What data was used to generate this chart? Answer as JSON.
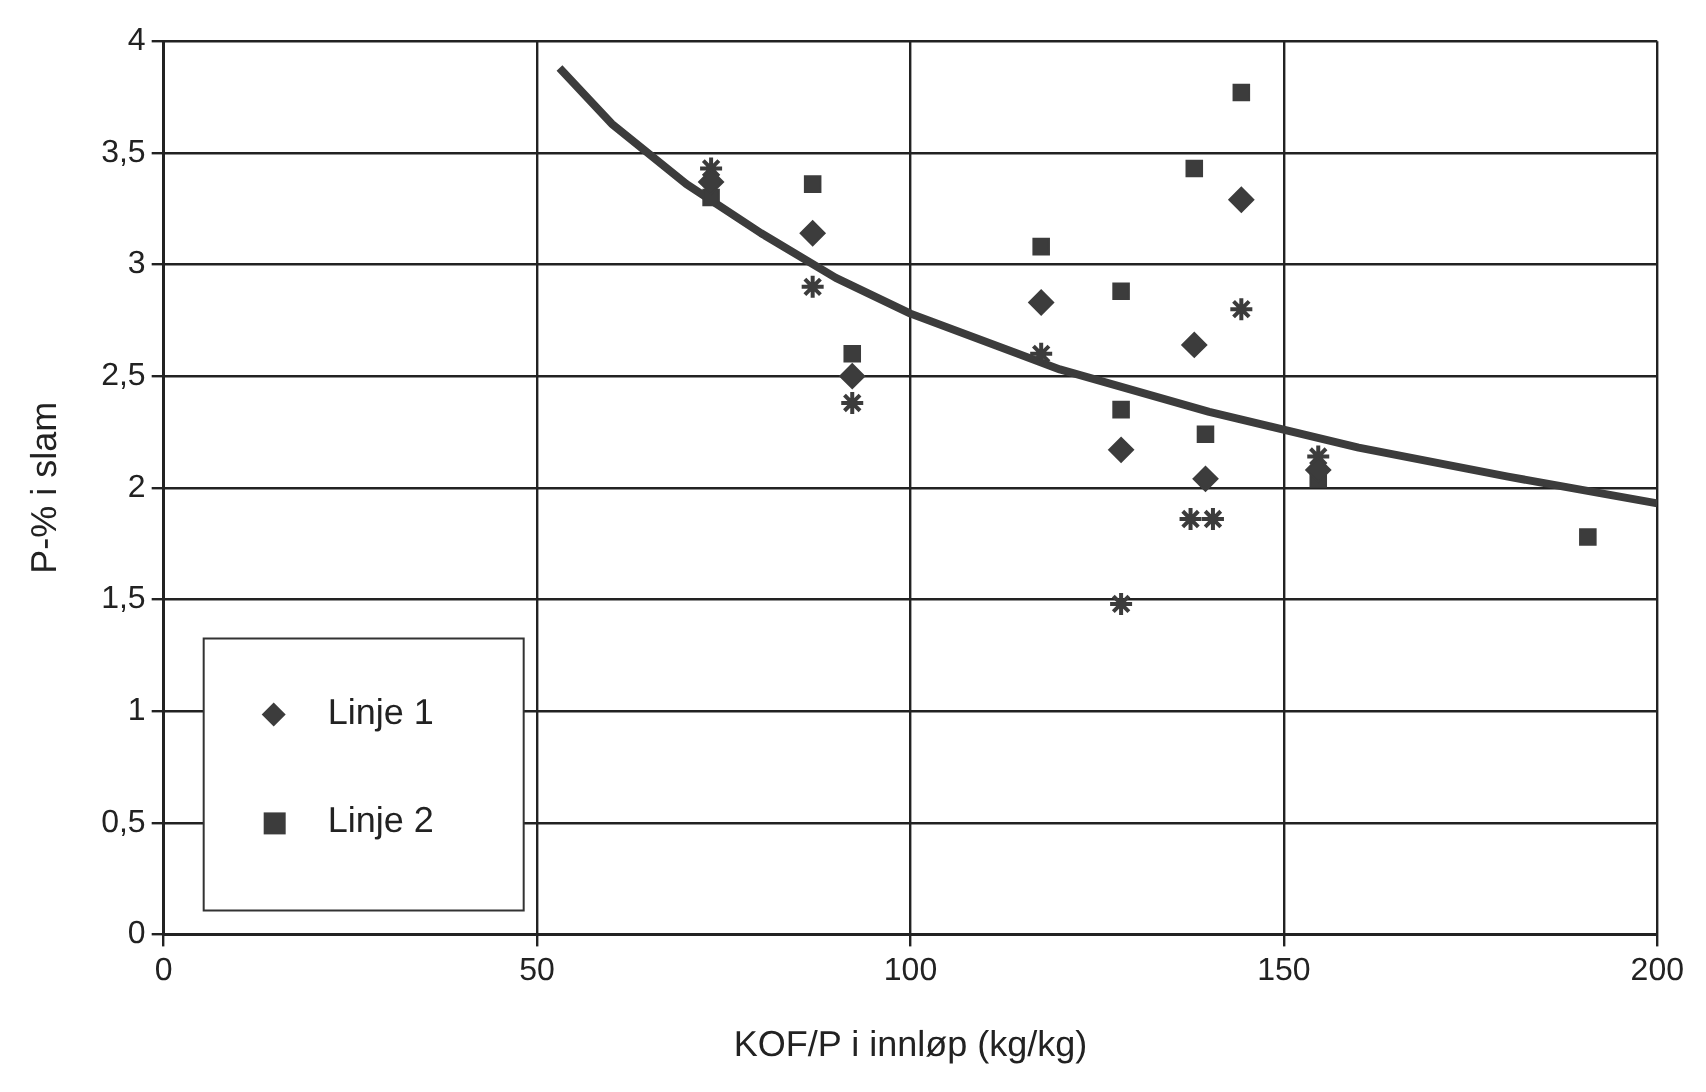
{
  "chart_data": {
    "type": "scatter",
    "xlabel": "KOF/P i innløp (kg/kg)",
    "ylabel": "P-% i slam",
    "xlim": [
      0,
      200
    ],
    "xticks": [
      0,
      50,
      100,
      150,
      200
    ],
    "ylim": [
      0,
      4
    ],
    "yticks": [
      0,
      {
        "value": 0.5,
        "label": "0,5"
      },
      1,
      {
        "value": 1.5,
        "label": "1,5"
      },
      2,
      {
        "value": 2.5,
        "label": "2,5"
      },
      3,
      {
        "value": 3.5,
        "label": "3,5"
      },
      4
    ],
    "grid": true,
    "legend": "bottom left",
    "series": [
      {
        "name": "Linje 1",
        "color": "#3c3c3c",
        "marker": "diamond",
        "x": [
          73.3,
          86.9,
          92.2,
          117.5,
          128.2,
          138,
          139.5,
          144.3,
          154.6
        ],
        "values": [
          3.37,
          3.14,
          2.5,
          2.83,
          2.17,
          2.64,
          2.04,
          3.29,
          2.08
        ]
      },
      {
        "name": "Linje 2",
        "color": "#3c3c3c",
        "marker": "square",
        "x": [
          73.3,
          86.9,
          92.2,
          117.5,
          128.2,
          128.2,
          138,
          139.5,
          144.3,
          154.6,
          190.7
        ],
        "values": [
          3.3,
          3.36,
          2.6,
          3.08,
          2.88,
          2.35,
          3.43,
          2.24,
          3.77,
          2.04,
          1.78
        ]
      },
      {
        "color": "#3c3c3c",
        "marker": "cross",
        "x": [
          73.3,
          86.9,
          92.2,
          117.5,
          128.2,
          137.5,
          140.5,
          144.3,
          154.6
        ],
        "values": [
          3.43,
          2.9,
          2.38,
          2.6,
          1.48,
          1.86,
          1.86,
          2.8,
          2.14
        ]
      },
      {
        "type": "line",
        "color": "#3c3c3c",
        "marker": "none",
        "line_style": "solid",
        "x": [
          53,
          60,
          70,
          80,
          90,
          100,
          120,
          140,
          160,
          180,
          200
        ],
        "values": [
          3.88,
          3.63,
          3.36,
          3.14,
          2.94,
          2.78,
          2.53,
          2.34,
          2.18,
          2.05,
          1.93
        ]
      }
    ]
  }
}
